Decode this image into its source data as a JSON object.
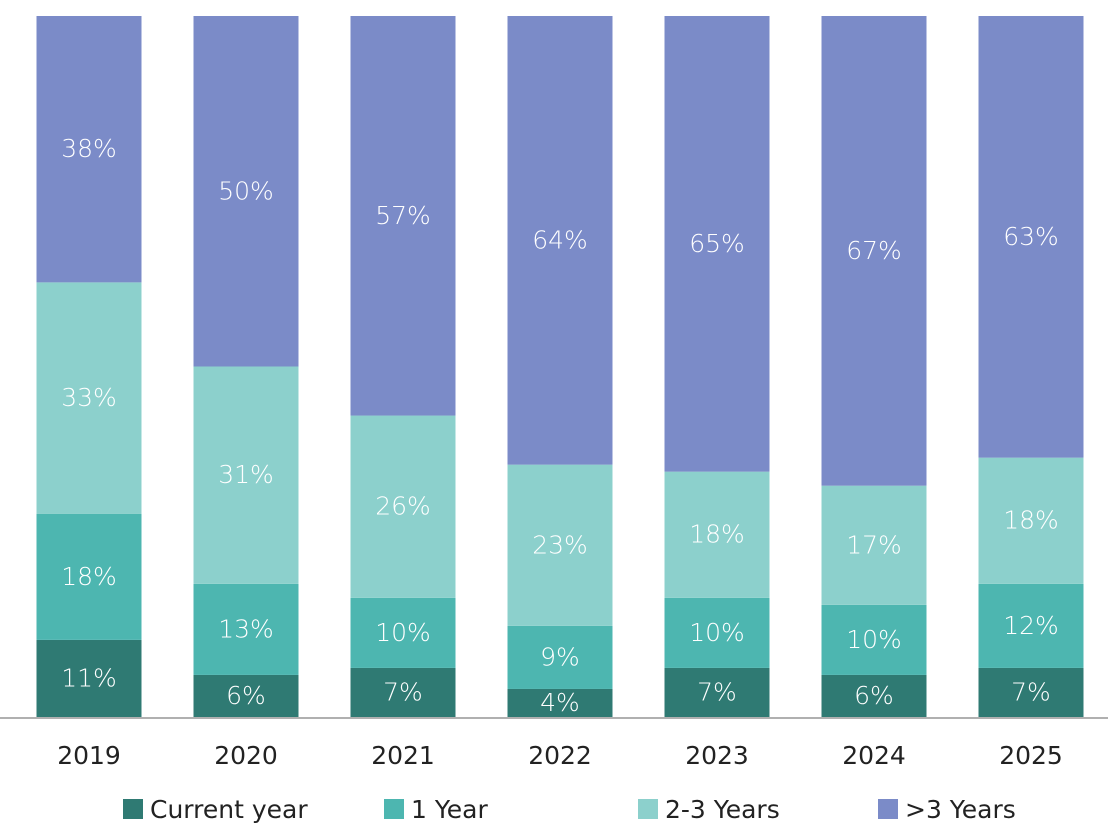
{
  "chart_data": {
    "type": "bar",
    "stacked": true,
    "categories": [
      "2019",
      "2020",
      "2021",
      "2022",
      "2023",
      "2024",
      "2025"
    ],
    "series": [
      {
        "name": "Current year",
        "color": "#2f7a73",
        "values": [
          11,
          6,
          7,
          4,
          7,
          6,
          7
        ]
      },
      {
        "name": "1 Year",
        "color": "#4db6b0",
        "values": [
          18,
          13,
          10,
          9,
          10,
          10,
          12
        ]
      },
      {
        "name": "2-3 Years",
        "color": "#8cd0cc",
        "values": [
          33,
          31,
          26,
          23,
          18,
          17,
          18
        ]
      },
      {
        "name": ">3 Years",
        "color": "#7b8bc8",
        "values": [
          38,
          50,
          57,
          64,
          65,
          67,
          63
        ]
      }
    ],
    "value_suffix": "%",
    "title": "",
    "xlabel": "",
    "ylabel": "",
    "ylim": [
      0,
      100
    ],
    "grid": false,
    "legend_position": "bottom"
  }
}
